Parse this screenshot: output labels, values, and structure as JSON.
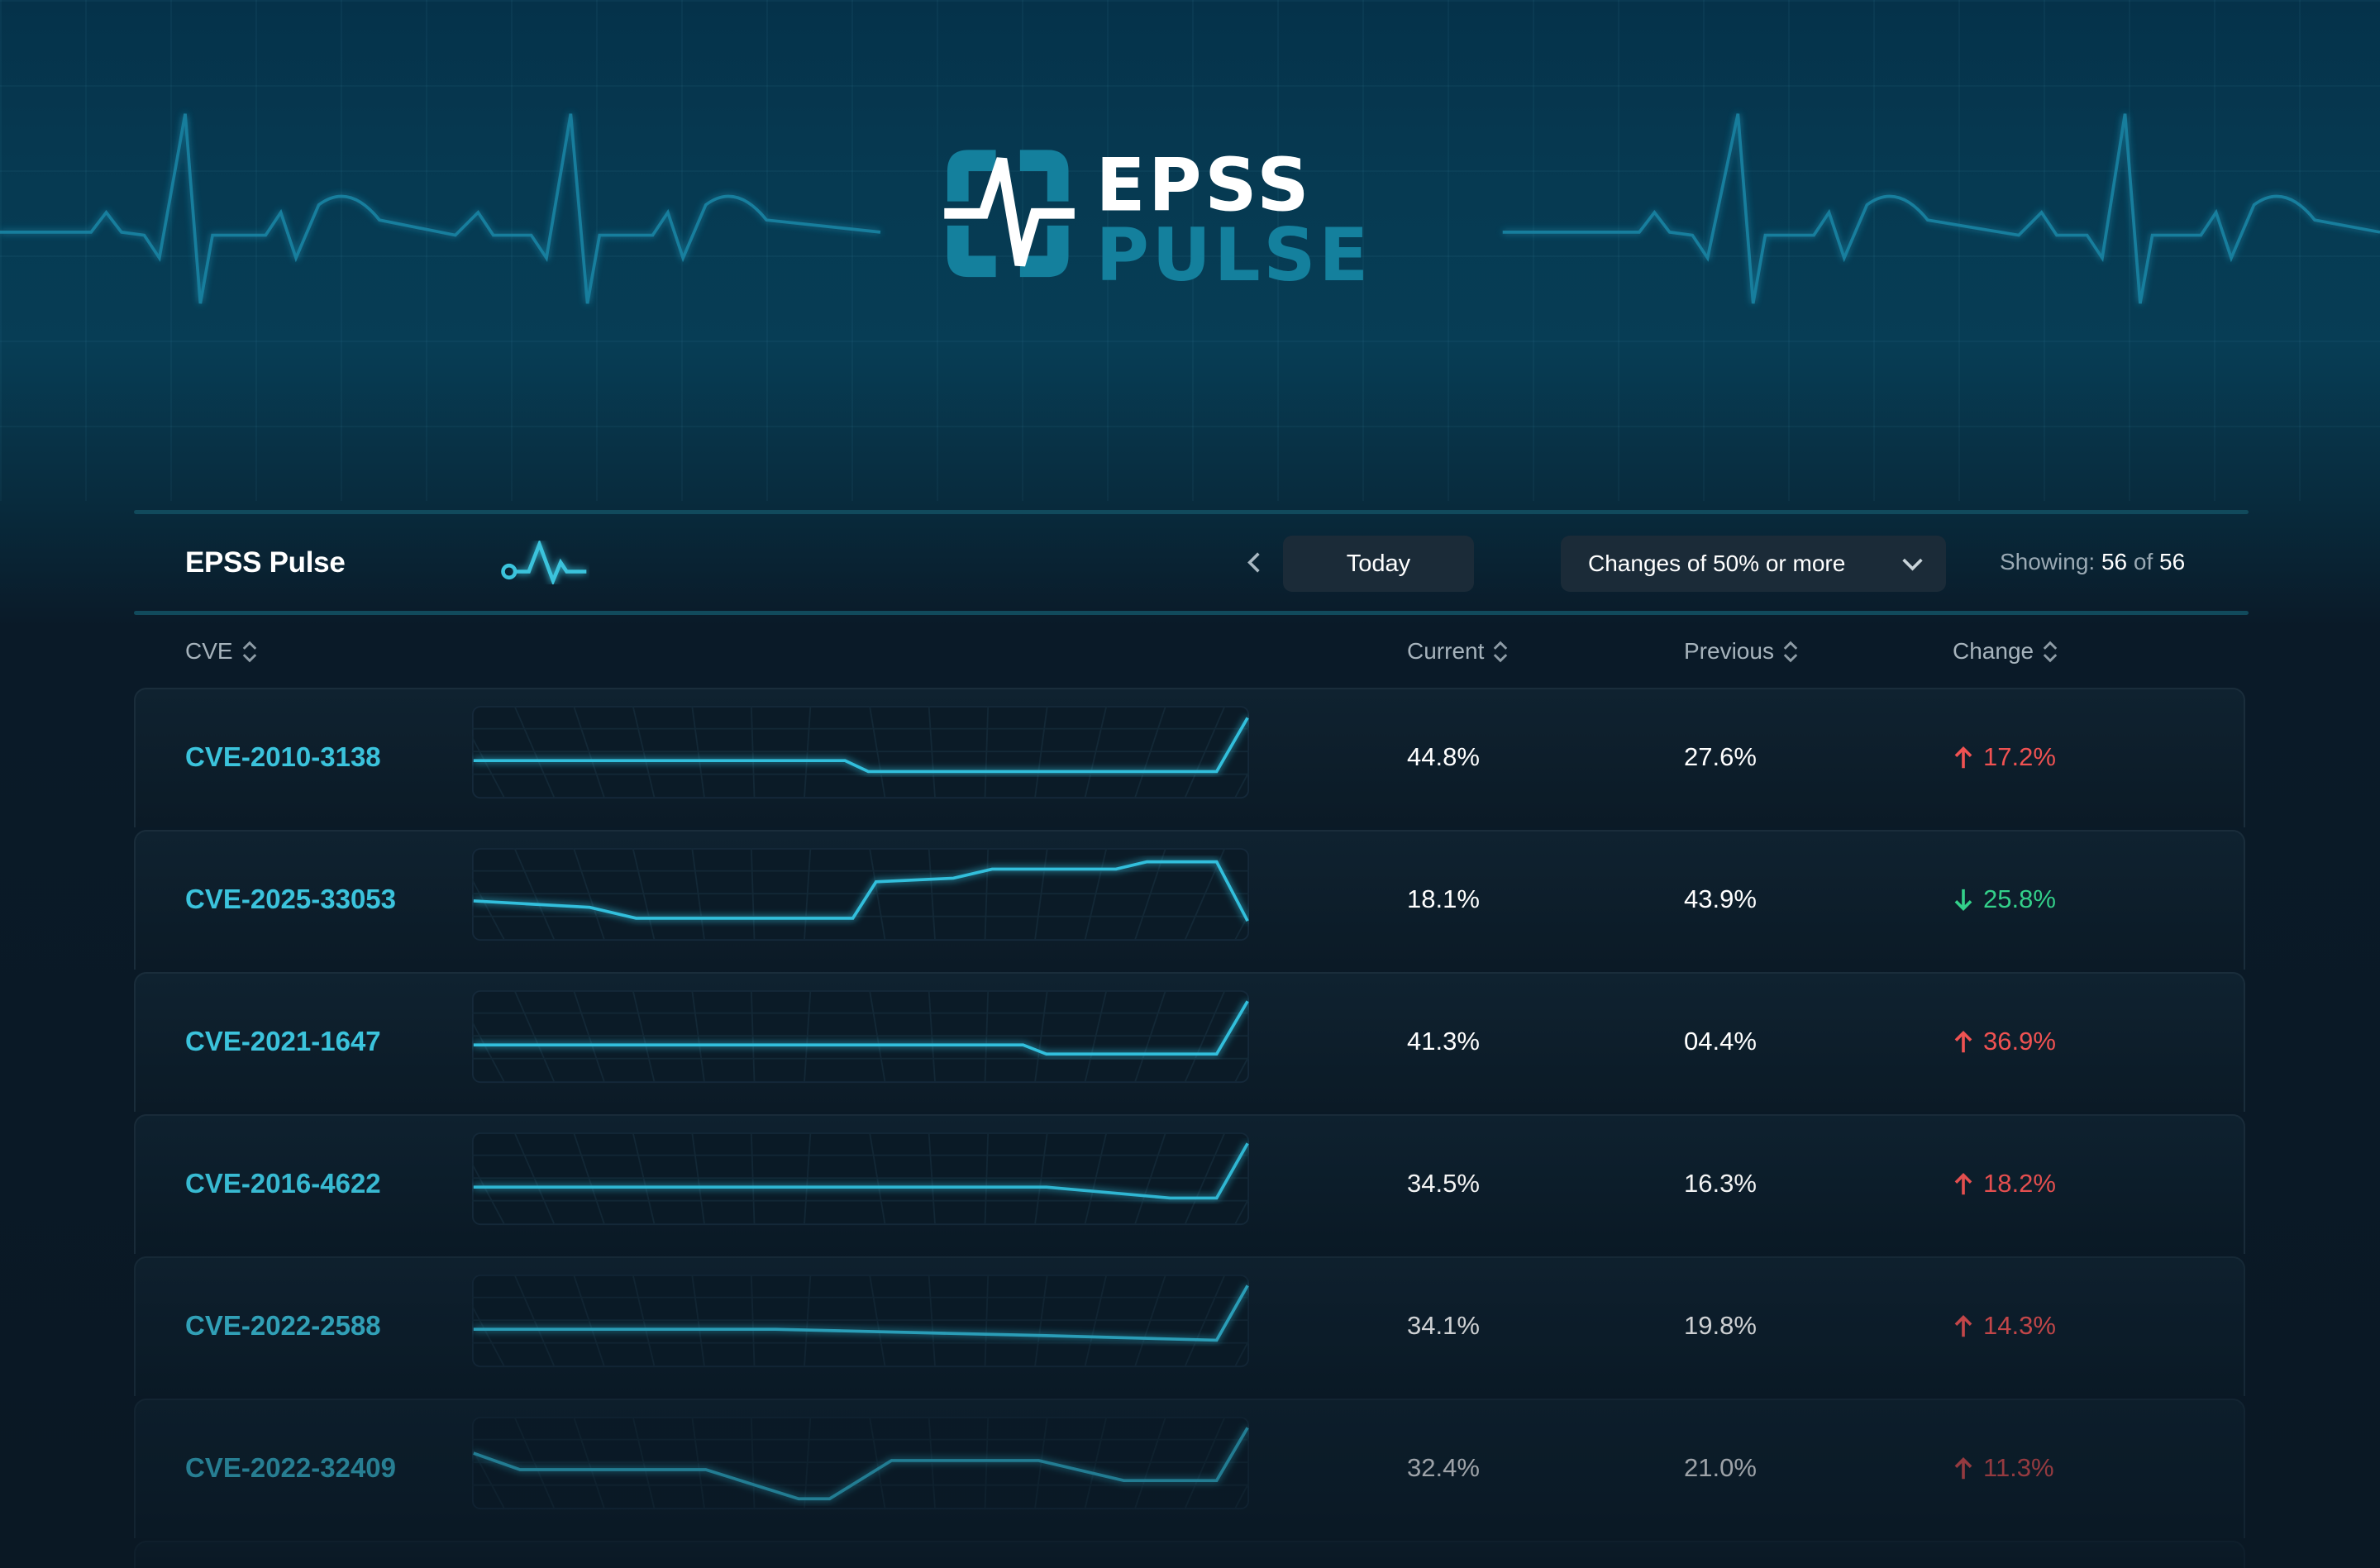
{
  "brand": {
    "logo_line1": "EPSS",
    "logo_line2": "PULSE"
  },
  "colors": {
    "accent": "#3bc3dc",
    "increase": "#f05252",
    "decrease": "#33d08a",
    "panel_border": "#114a5c"
  },
  "toolbar": {
    "title": "EPSS Pulse",
    "title_icon": "heartbeat-icon",
    "prev_icon": "chevron-left-icon",
    "next_icon": "chevron-right-icon",
    "date_label": "Today",
    "filter_value": "Changes of 50% or more",
    "showing_label": "Showing:",
    "showing_count": "56",
    "showing_of": "of",
    "showing_total": "56"
  },
  "table": {
    "columns": [
      {
        "label": "CVE",
        "sort_icon": "sort-icon"
      },
      {
        "label": "Current",
        "sort_icon": "sort-icon"
      },
      {
        "label": "Previous",
        "sort_icon": "sort-icon"
      },
      {
        "label": "Change",
        "sort_icon": "sort-icon"
      }
    ],
    "rows": [
      {
        "cve": "CVE-2010-3138",
        "current": "44.8%",
        "previous": "27.6%",
        "change": "17.2%",
        "direction": "up",
        "history": [
          [
            0,
            40
          ],
          [
            48,
            40
          ],
          [
            51,
            28
          ],
          [
            96,
            28
          ],
          [
            100,
            87
          ]
        ]
      },
      {
        "cve": "CVE-2025-33053",
        "current": "18.1%",
        "previous": "43.9%",
        "change": "25.8%",
        "direction": "down",
        "history": [
          [
            0,
            42
          ],
          [
            15,
            35
          ],
          [
            21,
            23
          ],
          [
            49,
            23
          ],
          [
            52,
            63
          ],
          [
            62,
            67
          ],
          [
            67,
            77
          ],
          [
            83,
            77
          ],
          [
            87,
            85
          ],
          [
            96,
            85
          ],
          [
            100,
            20
          ]
        ]
      },
      {
        "cve": "CVE-2021-1647",
        "current": "41.3%",
        "previous": "04.4%",
        "change": "36.9%",
        "direction": "up",
        "history": [
          [
            0,
            40
          ],
          [
            71,
            40
          ],
          [
            74,
            30
          ],
          [
            96,
            30
          ],
          [
            100,
            88
          ]
        ]
      },
      {
        "cve": "CVE-2016-4622",
        "current": "34.5%",
        "previous": "16.3%",
        "change": "18.2%",
        "direction": "up",
        "history": [
          [
            0,
            40
          ],
          [
            74,
            40
          ],
          [
            90,
            28
          ],
          [
            96,
            28
          ],
          [
            100,
            88
          ]
        ]
      },
      {
        "cve": "CVE-2022-2588",
        "current": "34.1%",
        "previous": "19.8%",
        "change": "14.3%",
        "direction": "up",
        "history": [
          [
            0,
            40
          ],
          [
            39,
            40
          ],
          [
            74,
            33
          ],
          [
            96,
            28
          ],
          [
            100,
            88
          ]
        ]
      },
      {
        "cve": "CVE-2022-32409",
        "current": "32.4%",
        "previous": "21.0%",
        "change": "11.3%",
        "direction": "up",
        "history": [
          [
            0,
            60
          ],
          [
            6,
            42
          ],
          [
            30,
            42
          ],
          [
            42,
            10
          ],
          [
            46,
            10
          ],
          [
            54,
            52
          ],
          [
            73,
            52
          ],
          [
            84,
            30
          ],
          [
            96,
            30
          ],
          [
            100,
            88
          ]
        ]
      }
    ]
  }
}
